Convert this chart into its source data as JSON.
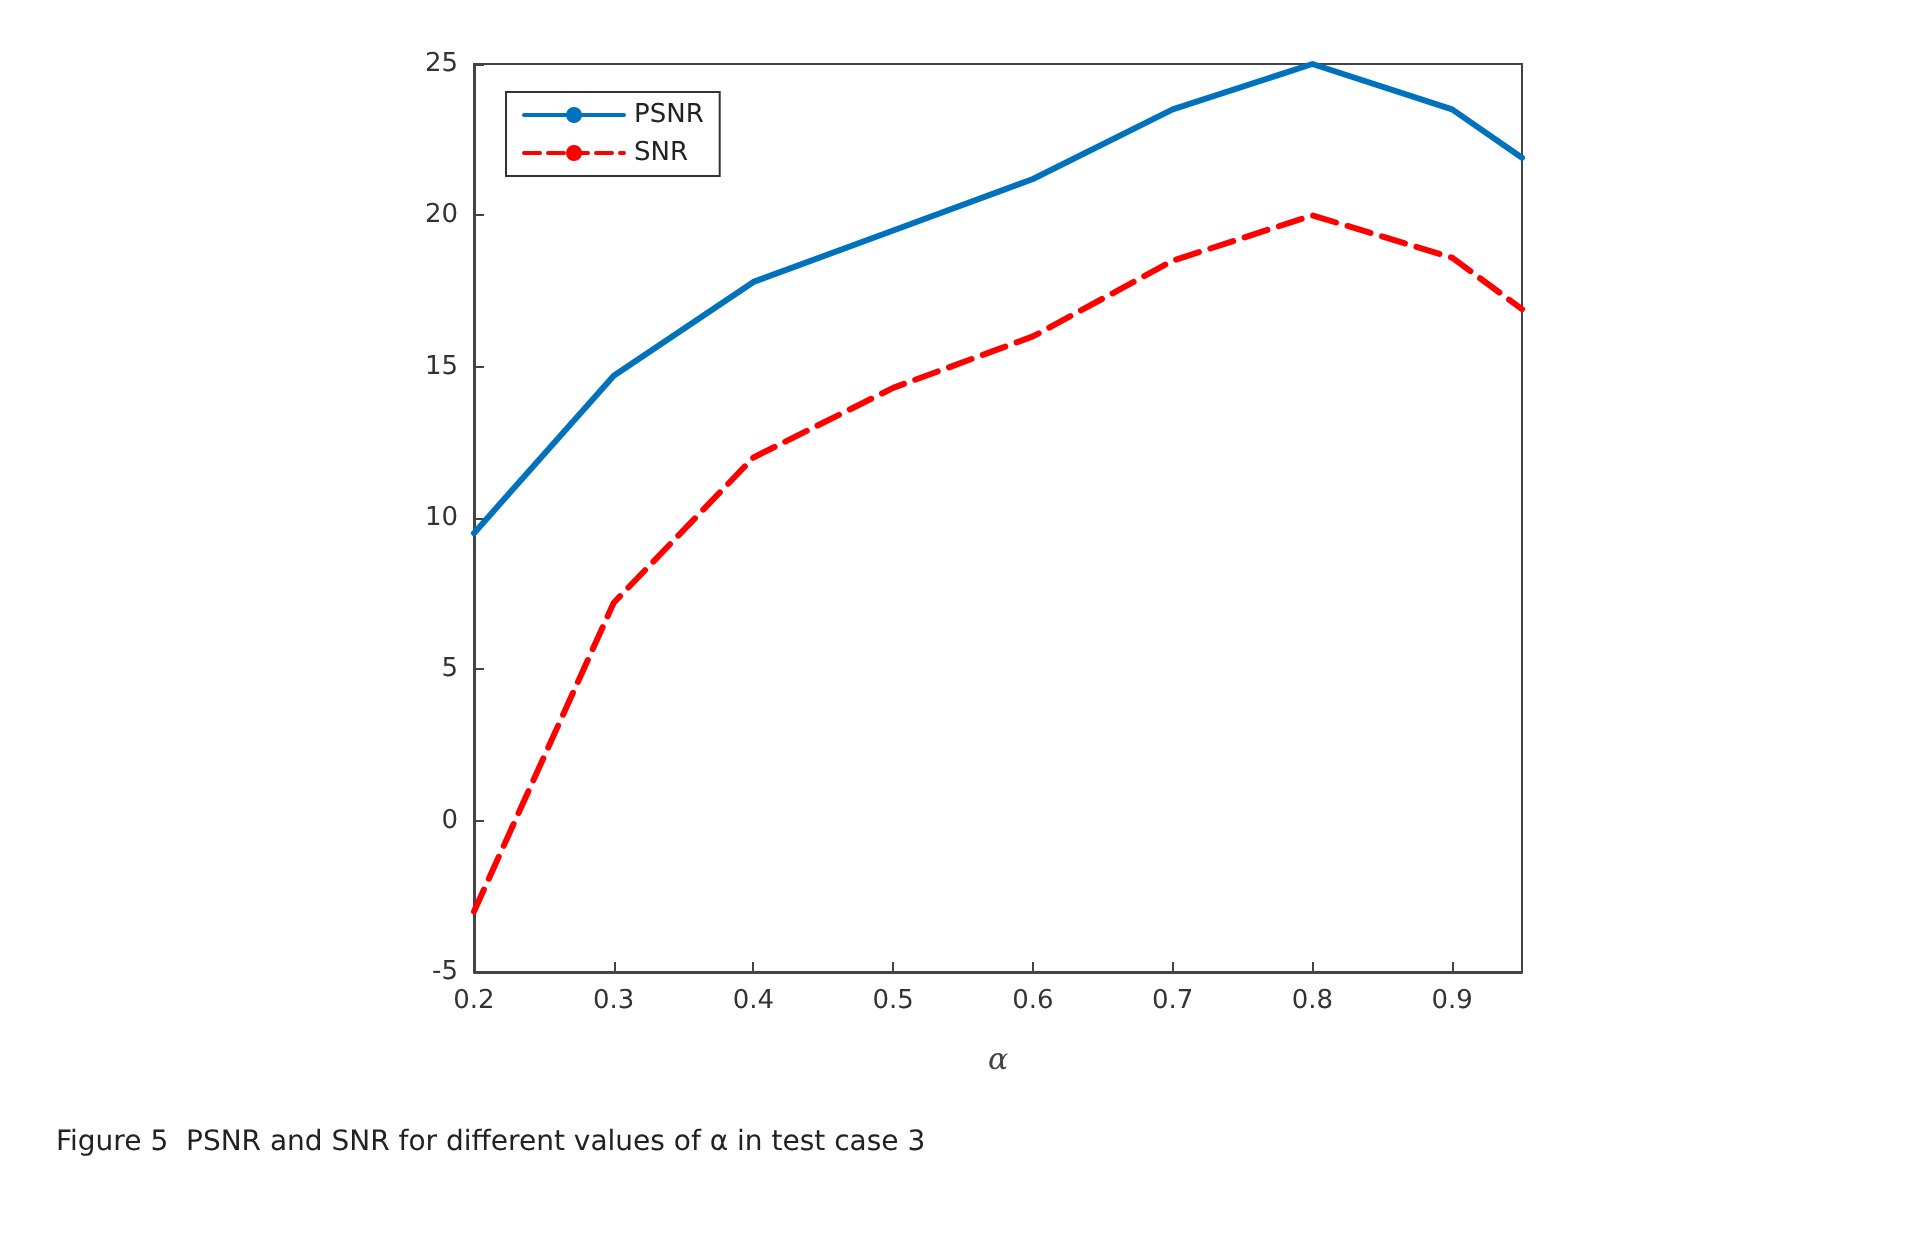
{
  "chart_data": {
    "type": "line",
    "xlabel": "α",
    "x": [
      0.2,
      0.3,
      0.4,
      0.5,
      0.6,
      0.7,
      0.8,
      0.9,
      0.95
    ],
    "series": [
      {
        "name": "PSNR",
        "color": "#0072bd",
        "line_style": "solid",
        "values": [
          9.5,
          14.7,
          17.8,
          19.5,
          21.2,
          23.5,
          25.0,
          23.5,
          21.9
        ]
      },
      {
        "name": "SNR",
        "color": "#ff0000",
        "line_style": "dashed",
        "values": [
          -3.0,
          7.2,
          12.0,
          14.3,
          16.0,
          18.5,
          20.0,
          18.6,
          16.9
        ]
      }
    ],
    "xlim": [
      0.2,
      0.95
    ],
    "xticks": [
      0.2,
      0.3,
      0.4,
      0.5,
      0.6,
      0.7,
      0.8,
      0.9
    ],
    "ylim": [
      -5,
      25
    ],
    "yticks": [
      -5,
      0,
      5,
      10,
      15,
      20,
      25
    ],
    "grid": false,
    "legend": "top left",
    "marker": "none",
    "annotations": [
      "Figure 5  PSNR and SNR for different values of α in test case 3"
    ]
  }
}
